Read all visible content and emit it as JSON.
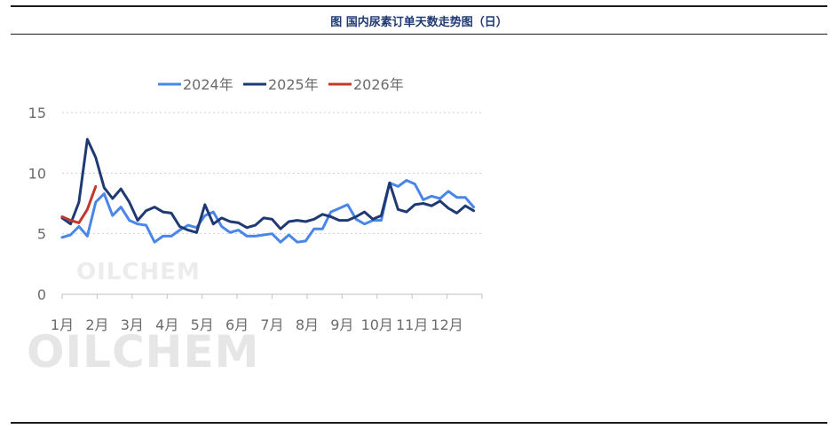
{
  "header": {
    "title": "图  国内尿素订单天数走势图（日）"
  },
  "watermark": "OILCHEM",
  "chart_data": {
    "type": "line",
    "title": "图  国内尿素订单天数走势图（日）",
    "xlabel": "",
    "ylabel": "",
    "ylim": [
      0,
      15
    ],
    "yticks": [
      0,
      5,
      10,
      15
    ],
    "xlim": [
      1,
      13
    ],
    "xticks": [
      "1月",
      "2月",
      "3月",
      "4月",
      "5月",
      "6月",
      "7月",
      "8月",
      "9月",
      "10月",
      "11月",
      "12月"
    ],
    "grid": true,
    "legend_position": "top",
    "series": [
      {
        "name": "2024年",
        "color": "#4a86e8",
        "x": [
          1.0,
          1.24,
          1.48,
          1.72,
          1.96,
          2.2,
          2.44,
          2.68,
          2.92,
          3.16,
          3.4,
          3.64,
          3.88,
          4.12,
          4.36,
          4.6,
          4.84,
          5.08,
          5.32,
          5.56,
          5.8,
          6.04,
          6.28,
          6.52,
          6.76,
          7.0,
          7.24,
          7.48,
          7.72,
          7.96,
          8.2,
          8.44,
          8.68,
          8.92,
          9.16,
          9.4,
          9.64,
          9.88,
          10.12,
          10.36,
          10.6,
          10.84,
          11.08,
          11.32,
          11.56,
          11.8,
          12.04,
          12.28,
          12.52,
          12.76
        ],
        "y": [
          4.7,
          4.9,
          5.6,
          4.8,
          7.6,
          8.3,
          6.5,
          7.2,
          6.1,
          5.8,
          5.7,
          4.3,
          4.8,
          4.8,
          5.3,
          5.7,
          5.5,
          6.5,
          6.8,
          5.6,
          5.1,
          5.3,
          4.8,
          4.8,
          4.9,
          5.0,
          4.3,
          4.9,
          4.3,
          4.4,
          5.4,
          5.4,
          6.8,
          7.1,
          7.4,
          6.2,
          5.8,
          6.1,
          6.1,
          9.2,
          8.9,
          9.4,
          9.1,
          7.8,
          8.1,
          7.9,
          8.5,
          8.0,
          8.0,
          7.2
        ]
      },
      {
        "name": "2025年",
        "color": "#1f3a73",
        "x": [
          1.0,
          1.24,
          1.48,
          1.72,
          1.96,
          2.2,
          2.44,
          2.68,
          2.92,
          3.16,
          3.4,
          3.64,
          3.88,
          4.12,
          4.36,
          4.6,
          4.84,
          5.08,
          5.32,
          5.56,
          5.8,
          6.04,
          6.28,
          6.52,
          6.76,
          7.0,
          7.24,
          7.48,
          7.72,
          7.96,
          8.2,
          8.44,
          8.68,
          8.92,
          9.16,
          9.4,
          9.64,
          9.88,
          10.12,
          10.36,
          10.6,
          10.84,
          11.08,
          11.32,
          11.56,
          11.8,
          12.04,
          12.28,
          12.52,
          12.76
        ],
        "y": [
          6.3,
          5.8,
          7.6,
          12.8,
          11.3,
          8.8,
          7.9,
          8.7,
          7.6,
          6.1,
          6.9,
          7.2,
          6.8,
          6.7,
          5.6,
          5.3,
          5.1,
          7.4,
          5.8,
          6.3,
          6.0,
          5.9,
          5.5,
          5.7,
          6.3,
          6.2,
          5.4,
          6.0,
          6.1,
          6.0,
          6.2,
          6.6,
          6.4,
          6.1,
          6.1,
          6.4,
          6.8,
          6.2,
          6.5,
          9.2,
          7.0,
          6.8,
          7.4,
          7.5,
          7.3,
          7.7,
          7.1,
          6.7,
          7.3,
          6.9
        ]
      },
      {
        "name": "2026年",
        "color": "#c0392b",
        "x": [
          1.0,
          1.24,
          1.48,
          1.72,
          1.96
        ],
        "y": [
          6.4,
          6.1,
          5.9,
          7.0,
          8.9
        ]
      }
    ]
  }
}
